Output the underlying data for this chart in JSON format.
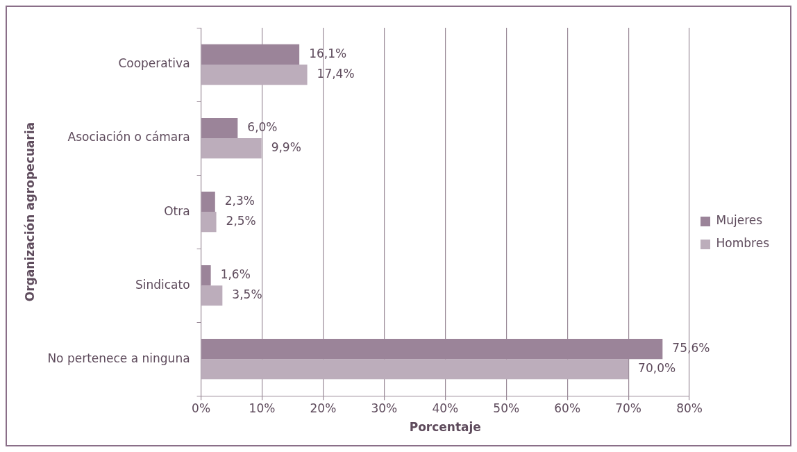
{
  "chart_data": {
    "type": "bar",
    "orientation": "horizontal",
    "xlabel": "Porcentaje",
    "ylabel": "Organización agropecuaria",
    "categories": [
      "Cooperativa",
      "Asociación o cámara",
      "Otra",
      "Sindicato",
      "No pertenece a ninguna"
    ],
    "series": [
      {
        "name": "Mujeres",
        "color": "#9b8499",
        "values": [
          16.1,
          6.0,
          2.3,
          1.6,
          75.6
        ],
        "value_labels": [
          "16,1%",
          "6,0%",
          "2,3%",
          "1,6%",
          "75,6%"
        ]
      },
      {
        "name": "Hombres",
        "color": "#bcadbb",
        "values": [
          17.4,
          9.9,
          2.5,
          3.5,
          70.0
        ],
        "value_labels": [
          "17,4%",
          "9,9%",
          "2,5%",
          "3,5%",
          "70,0%"
        ]
      }
    ],
    "xlim": [
      0,
      80
    ],
    "xticks": [
      {
        "value": 0,
        "label": "0%"
      },
      {
        "value": 10,
        "label": "10%"
      },
      {
        "value": 20,
        "label": "20%"
      },
      {
        "value": 30,
        "label": "30%"
      },
      {
        "value": 40,
        "label": "40%"
      },
      {
        "value": 50,
        "label": "50%"
      },
      {
        "value": 60,
        "label": "60%"
      },
      {
        "value": 70,
        "label": "70%"
      },
      {
        "value": 80,
        "label": "80%"
      }
    ],
    "grid": "x",
    "legend": "right"
  }
}
